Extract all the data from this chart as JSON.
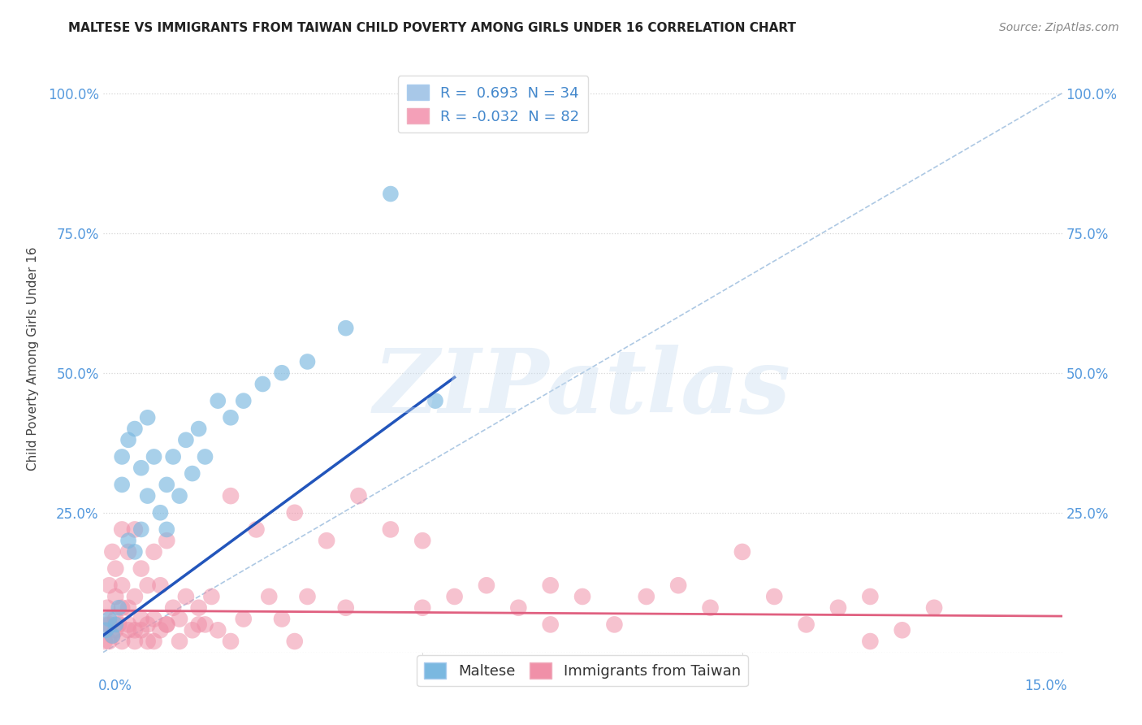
{
  "title": "MALTESE VS IMMIGRANTS FROM TAIWAN CHILD POVERTY AMONG GIRLS UNDER 16 CORRELATION CHART",
  "source": "Source: ZipAtlas.com",
  "ylabel": "Child Poverty Among Girls Under 16",
  "xlim": [
    0.0,
    0.15
  ],
  "ylim": [
    0.0,
    1.05
  ],
  "ytick_positions": [
    0.0,
    0.25,
    0.5,
    0.75,
    1.0
  ],
  "ytick_labels": [
    "",
    "25.0%",
    "50.0%",
    "75.0%",
    "100.0%"
  ],
  "legend_entries": [
    {
      "label": "R =  0.693  N = 34",
      "color": "#a8c8e8"
    },
    {
      "label": "R = -0.032  N = 82",
      "color": "#f4a0b8"
    }
  ],
  "legend_labels_bottom": [
    "Maltese",
    "Immigrants from Taiwan"
  ],
  "blue_color": "#7ab8e0",
  "pink_color": "#f090a8",
  "regression_blue_color": "#2255bb",
  "regression_pink_color": "#e06080",
  "watermark": "ZIPatlas",
  "watermark_color": "#c8ddf0",
  "identity_line_color": "#99bbdd",
  "R_blue": 0.693,
  "N_blue": 34,
  "R_pink": -0.032,
  "N_pink": 82,
  "blue_x": [
    0.0005,
    0.001,
    0.0015,
    0.002,
    0.0025,
    0.003,
    0.003,
    0.004,
    0.004,
    0.005,
    0.005,
    0.006,
    0.006,
    0.007,
    0.007,
    0.008,
    0.009,
    0.01,
    0.01,
    0.011,
    0.012,
    0.013,
    0.014,
    0.015,
    0.016,
    0.018,
    0.02,
    0.022,
    0.025,
    0.028,
    0.032,
    0.038,
    0.045,
    0.052
  ],
  "blue_y": [
    0.04,
    0.06,
    0.03,
    0.05,
    0.08,
    0.3,
    0.35,
    0.2,
    0.38,
    0.18,
    0.4,
    0.22,
    0.33,
    0.28,
    0.42,
    0.35,
    0.25,
    0.3,
    0.22,
    0.35,
    0.28,
    0.38,
    0.32,
    0.4,
    0.35,
    0.45,
    0.42,
    0.45,
    0.48,
    0.5,
    0.52,
    0.58,
    0.82,
    0.45
  ],
  "pink_x": [
    0.0003,
    0.0005,
    0.0007,
    0.001,
    0.001,
    0.0015,
    0.0015,
    0.002,
    0.002,
    0.002,
    0.0025,
    0.003,
    0.003,
    0.003,
    0.004,
    0.004,
    0.004,
    0.005,
    0.005,
    0.005,
    0.006,
    0.006,
    0.007,
    0.007,
    0.008,
    0.008,
    0.009,
    0.009,
    0.01,
    0.01,
    0.011,
    0.012,
    0.013,
    0.014,
    0.015,
    0.016,
    0.017,
    0.018,
    0.02,
    0.022,
    0.024,
    0.026,
    0.028,
    0.03,
    0.032,
    0.035,
    0.038,
    0.04,
    0.045,
    0.05,
    0.055,
    0.06,
    0.065,
    0.07,
    0.075,
    0.08,
    0.085,
    0.09,
    0.095,
    0.1,
    0.105,
    0.11,
    0.115,
    0.12,
    0.125,
    0.13,
    0.001,
    0.002,
    0.003,
    0.004,
    0.005,
    0.006,
    0.007,
    0.008,
    0.01,
    0.012,
    0.015,
    0.02,
    0.03,
    0.05,
    0.07,
    0.12
  ],
  "pink_y": [
    0.02,
    0.05,
    0.08,
    0.05,
    0.12,
    0.03,
    0.18,
    0.06,
    0.1,
    0.15,
    0.05,
    0.08,
    0.12,
    0.22,
    0.05,
    0.08,
    0.18,
    0.04,
    0.1,
    0.22,
    0.06,
    0.15,
    0.05,
    0.12,
    0.06,
    0.18,
    0.04,
    0.12,
    0.05,
    0.2,
    0.08,
    0.06,
    0.1,
    0.04,
    0.08,
    0.05,
    0.1,
    0.04,
    0.28,
    0.06,
    0.22,
    0.1,
    0.06,
    0.25,
    0.1,
    0.2,
    0.08,
    0.28,
    0.22,
    0.2,
    0.1,
    0.12,
    0.08,
    0.12,
    0.1,
    0.05,
    0.1,
    0.12,
    0.08,
    0.18,
    0.1,
    0.05,
    0.08,
    0.1,
    0.04,
    0.08,
    0.02,
    0.04,
    0.02,
    0.04,
    0.02,
    0.04,
    0.02,
    0.02,
    0.05,
    0.02,
    0.05,
    0.02,
    0.02,
    0.08,
    0.05,
    0.02
  ]
}
